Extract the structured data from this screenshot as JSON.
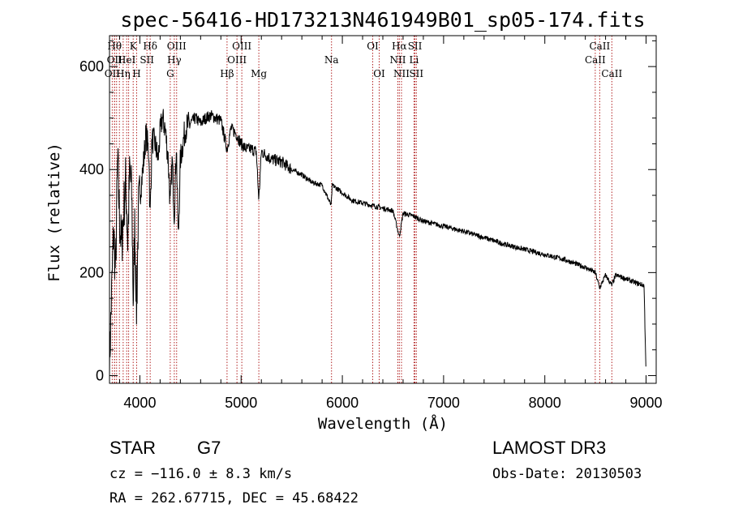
{
  "chart_data": {
    "type": "line",
    "title": "spec-56416-HD173213N461949B01_sp05-174.fits",
    "xlabel": "Wavelength (Å)",
    "ylabel": "Flux (relative)",
    "xlim": [
      3700,
      9100
    ],
    "ylim": [
      -15,
      660
    ],
    "xticks": [
      4000,
      5000,
      6000,
      7000,
      8000,
      9000
    ],
    "yticks": [
      0,
      200,
      400,
      600
    ],
    "xtick_labels": [
      "4000",
      "5000",
      "6000",
      "7000",
      "8000",
      "9000"
    ],
    "ytick_labels": [
      "0",
      "200",
      "400",
      "600"
    ],
    "series": [
      {
        "name": "spectrum",
        "color": "#000000",
        "anchors": [
          [
            3700,
            20
          ],
          [
            3720,
            150
          ],
          [
            3740,
            280
          ],
          [
            3760,
            200
          ],
          [
            3780,
            420
          ],
          [
            3800,
            300
          ],
          [
            3820,
            250
          ],
          [
            3840,
            320
          ],
          [
            3860,
            380
          ],
          [
            3880,
            260
          ],
          [
            3900,
            400
          ],
          [
            3920,
            350
          ],
          [
            3935,
            140
          ],
          [
            3950,
            300
          ],
          [
            3968,
            120
          ],
          [
            3985,
            320
          ],
          [
            4000,
            350
          ],
          [
            4030,
            400
          ],
          [
            4060,
            470
          ],
          [
            4090,
            430
          ],
          [
            4100,
            300
          ],
          [
            4120,
            460
          ],
          [
            4150,
            450
          ],
          [
            4180,
            420
          ],
          [
            4200,
            470
          ],
          [
            4220,
            500
          ],
          [
            4250,
            480
          ],
          [
            4280,
            420
          ],
          [
            4300,
            330
          ],
          [
            4320,
            420
          ],
          [
            4340,
            310
          ],
          [
            4360,
            450
          ],
          [
            4380,
            260
          ],
          [
            4400,
            420
          ],
          [
            4450,
            480
          ],
          [
            4500,
            490
          ],
          [
            4550,
            500
          ],
          [
            4600,
            490
          ],
          [
            4650,
            500
          ],
          [
            4700,
            505
          ],
          [
            4750,
            500
          ],
          [
            4800,
            495
          ],
          [
            4861,
            440
          ],
          [
            4900,
            480
          ],
          [
            4950,
            470
          ],
          [
            5000,
            450
          ],
          [
            5050,
            440
          ],
          [
            5100,
            440
          ],
          [
            5150,
            435
          ],
          [
            5175,
            340
          ],
          [
            5200,
            435
          ],
          [
            5300,
            420
          ],
          [
            5400,
            415
          ],
          [
            5500,
            400
          ],
          [
            5600,
            390
          ],
          [
            5700,
            375
          ],
          [
            5800,
            370
          ],
          [
            5890,
            330
          ],
          [
            5900,
            370
          ],
          [
            6000,
            355
          ],
          [
            6100,
            340
          ],
          [
            6200,
            335
          ],
          [
            6300,
            330
          ],
          [
            6400,
            325
          ],
          [
            6500,
            320
          ],
          [
            6563,
            270
          ],
          [
            6600,
            315
          ],
          [
            6700,
            310
          ],
          [
            6800,
            300
          ],
          [
            7000,
            290
          ],
          [
            7200,
            280
          ],
          [
            7400,
            268
          ],
          [
            7600,
            255
          ],
          [
            7800,
            245
          ],
          [
            8000,
            235
          ],
          [
            8200,
            225
          ],
          [
            8400,
            210
          ],
          [
            8498,
            200
          ],
          [
            8542,
            170
          ],
          [
            8600,
            195
          ],
          [
            8662,
            175
          ],
          [
            8700,
            195
          ],
          [
            8800,
            188
          ],
          [
            8900,
            180
          ],
          [
            8980,
            175
          ],
          [
            9000,
            0
          ]
        ]
      }
    ],
    "annotations": [
      {
        "wavelength": 3727,
        "row": 2,
        "label": "OII"
      },
      {
        "wavelength": 3750,
        "row": 0,
        "label": "Hθ"
      },
      {
        "wavelength": 3750,
        "row": 1,
        "label": "OII"
      },
      {
        "wavelength": 3770,
        "row": 0,
        "label": ""
      },
      {
        "wavelength": 3798,
        "row": 1,
        "label": ""
      },
      {
        "wavelength": 3835,
        "row": 2,
        "label": "Hη"
      },
      {
        "wavelength": 3870,
        "row": 1,
        "label": "HeI"
      },
      {
        "wavelength": 3889,
        "row": 0,
        "label": ""
      },
      {
        "wavelength": 3934,
        "row": 0,
        "label": "K"
      },
      {
        "wavelength": 3968,
        "row": 2,
        "label": "H"
      },
      {
        "wavelength": 4070,
        "row": 1,
        "label": "SII"
      },
      {
        "wavelength": 4102,
        "row": 0,
        "label": "Hδ"
      },
      {
        "wavelength": 4300,
        "row": 2,
        "label": "G"
      },
      {
        "wavelength": 4340,
        "row": 1,
        "label": "Hγ"
      },
      {
        "wavelength": 4363,
        "row": 0,
        "label": "OIII"
      },
      {
        "wavelength": 4861,
        "row": 2,
        "label": "Hβ"
      },
      {
        "wavelength": 4959,
        "row": 1,
        "label": "OIII"
      },
      {
        "wavelength": 5007,
        "row": 0,
        "label": "OIII"
      },
      {
        "wavelength": 5175,
        "row": 2,
        "label": "Mg"
      },
      {
        "wavelength": 5893,
        "row": 1,
        "label": "Na"
      },
      {
        "wavelength": 6300,
        "row": 0,
        "label": "OI"
      },
      {
        "wavelength": 6364,
        "row": 2,
        "label": "OI"
      },
      {
        "wavelength": 6548,
        "row": 1,
        "label": "NII"
      },
      {
        "wavelength": 6563,
        "row": 0,
        "label": "Hα"
      },
      {
        "wavelength": 6584,
        "row": 2,
        "label": "NII"
      },
      {
        "wavelength": 6708,
        "row": 1,
        "label": "Li"
      },
      {
        "wavelength": 6717,
        "row": 0,
        "label": "SII"
      },
      {
        "wavelength": 6731,
        "row": 2,
        "label": "SII"
      },
      {
        "wavelength": 8498,
        "row": 1,
        "label": "CaII"
      },
      {
        "wavelength": 8542,
        "row": 0,
        "label": "CaII"
      },
      {
        "wavelength": 8662,
        "row": 2,
        "label": "CaII"
      }
    ]
  },
  "info": {
    "class_label": "STAR",
    "subclass": "G7",
    "survey": "LAMOST DR3",
    "cz": "cz = −116.0 ± 8.3 km/s",
    "obs_date": "Obs-Date: 20130503",
    "coords": "RA = 262.67715, DEC =  45.68422"
  },
  "colors": {
    "line_marker": "#b22222",
    "spectrum": "#000000"
  }
}
